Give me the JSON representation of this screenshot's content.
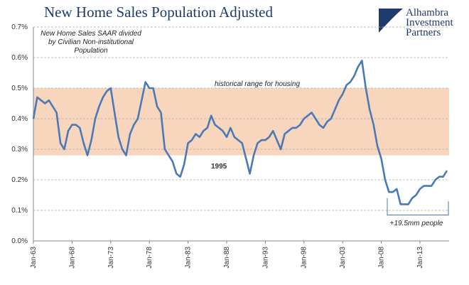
{
  "chart_data": {
    "type": "line",
    "title": "New Home Sales Population Adjusted",
    "subtitle": [
      "New Home Sales SAAR divided",
      "by Civilian Non-institutional",
      "Population"
    ],
    "logo": [
      "Alhambra",
      "Investment",
      "Partners"
    ],
    "annotations": {
      "band_label": "historical range for housing",
      "year_label": "1995",
      "bracket_label": "+19.5mm people"
    },
    "band": [
      0.28,
      0.5
    ],
    "band_color": "#f8d5bd",
    "categories": [
      "Jan-63",
      null,
      null,
      null,
      null,
      null,
      null,
      null,
      null,
      null,
      "Jan-68",
      null,
      null,
      null,
      null,
      null,
      null,
      null,
      null,
      null,
      "Jan-73",
      null,
      null,
      null,
      null,
      null,
      null,
      null,
      null,
      null,
      "Jan-78",
      null,
      null,
      null,
      null,
      null,
      null,
      null,
      null,
      null,
      "Jan-83",
      null,
      null,
      null,
      null,
      null,
      null,
      null,
      null,
      null,
      "Jan-88",
      null,
      null,
      null,
      null,
      null,
      null,
      null,
      null,
      null,
      "Jan-93",
      null,
      null,
      null,
      null,
      null,
      null,
      null,
      null,
      null,
      "Jan-98",
      null,
      null,
      null,
      null,
      null,
      null,
      null,
      null,
      null,
      "Jan-03",
      null,
      null,
      null,
      null,
      null,
      null,
      null,
      null,
      null,
      "Jan-08",
      null,
      null,
      null,
      null,
      null,
      null,
      null,
      null,
      null,
      "Jan-13",
      null,
      null,
      null,
      null,
      null,
      null,
      null
    ],
    "series": [
      {
        "name": "New Home Sales Population Adjusted",
        "color": "#4a7ab5",
        "values": [
          0.4,
          0.47,
          0.46,
          0.45,
          0.46,
          0.44,
          0.42,
          0.32,
          0.3,
          0.36,
          0.38,
          0.38,
          0.37,
          0.32,
          0.28,
          0.33,
          0.4,
          0.44,
          0.47,
          0.49,
          0.5,
          0.42,
          0.34,
          0.3,
          0.28,
          0.35,
          0.38,
          0.4,
          0.46,
          0.52,
          0.5,
          0.5,
          0.44,
          0.42,
          0.3,
          0.28,
          0.26,
          0.22,
          0.21,
          0.25,
          0.32,
          0.33,
          0.35,
          0.34,
          0.36,
          0.37,
          0.41,
          0.38,
          0.37,
          0.36,
          0.34,
          0.37,
          0.34,
          0.33,
          0.32,
          0.27,
          0.22,
          0.28,
          0.32,
          0.33,
          0.33,
          0.34,
          0.36,
          0.33,
          0.3,
          0.35,
          0.36,
          0.37,
          0.37,
          0.38,
          0.4,
          0.41,
          0.42,
          0.4,
          0.38,
          0.37,
          0.39,
          0.4,
          0.43,
          0.46,
          0.48,
          0.51,
          0.52,
          0.54,
          0.57,
          0.59,
          0.5,
          0.43,
          0.38,
          0.31,
          0.27,
          0.2,
          0.16,
          0.16,
          0.17,
          0.12,
          0.12,
          0.12,
          0.14,
          0.15,
          0.17,
          0.18,
          0.18,
          0.18,
          0.2,
          0.21,
          0.21,
          0.23
        ]
      }
    ],
    "ylim": [
      0,
      0.7
    ],
    "yticks": [
      {
        "value": 0,
        "label": "0.0%"
      },
      {
        "value": 0.1,
        "label": "0.1%"
      },
      {
        "value": 0.2,
        "label": "0.2%"
      },
      {
        "value": 0.3,
        "label": "0.3%"
      },
      {
        "value": 0.4,
        "label": "0.4%"
      },
      {
        "value": 0.5,
        "label": "0.5%"
      },
      {
        "value": 0.6,
        "label": "0.6%"
      },
      {
        "value": 0.7,
        "label": "0.7%"
      }
    ],
    "grid": true
  }
}
